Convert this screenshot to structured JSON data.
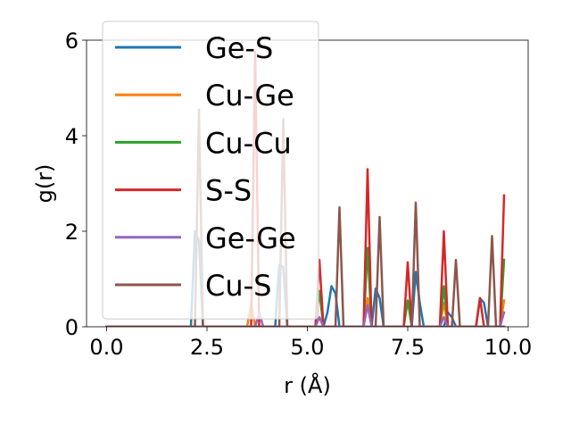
{
  "chart_data": {
    "type": "line",
    "title": "",
    "xlabel": "r (Å)",
    "ylabel": "g(r)",
    "xlim": [
      -0.5,
      10.5
    ],
    "ylim": [
      0,
      6
    ],
    "xticks": [
      0.0,
      2.5,
      5.0,
      7.5,
      10.0
    ],
    "xtick_labels": [
      "0.0",
      "2.5",
      "5.0",
      "7.5",
      "10.0"
    ],
    "yticks": [
      0,
      2,
      4,
      6
    ],
    "ytick_labels": [
      "0",
      "2",
      "4",
      "6"
    ],
    "grid": false,
    "legend_position": "top-left",
    "x": [
      0.0,
      0.1,
      0.2,
      0.3,
      0.4,
      0.5,
      0.6,
      0.7,
      0.8,
      0.9,
      1.0,
      1.1,
      1.2,
      1.3,
      1.4,
      1.5,
      1.6,
      1.7,
      1.8,
      1.9,
      2.0,
      2.1,
      2.2,
      2.3,
      2.4,
      2.5,
      2.6,
      2.7,
      2.8,
      2.9,
      3.0,
      3.1,
      3.2,
      3.3,
      3.4,
      3.5,
      3.6,
      3.7,
      3.8,
      3.9,
      4.0,
      4.1,
      4.2,
      4.3,
      4.4,
      4.5,
      4.6,
      4.7,
      4.8,
      4.9,
      5.0,
      5.1,
      5.2,
      5.3,
      5.4,
      5.5,
      5.6,
      5.7,
      5.8,
      5.9,
      6.0,
      6.1,
      6.2,
      6.3,
      6.4,
      6.5,
      6.6,
      6.7,
      6.8,
      6.9,
      7.0,
      7.1,
      7.2,
      7.3,
      7.4,
      7.5,
      7.6,
      7.7,
      7.8,
      7.9,
      8.0,
      8.1,
      8.2,
      8.3,
      8.4,
      8.5,
      8.6,
      8.7,
      8.8,
      8.9,
      9.0,
      9.1,
      9.2,
      9.3,
      9.4,
      9.5,
      9.6,
      9.7,
      9.8,
      9.9
    ],
    "series": [
      {
        "name": "Ge-S",
        "color": "#1f77b4",
        "values": [
          0,
          0,
          0,
          0,
          0,
          0,
          0,
          0,
          0,
          0,
          0,
          0,
          0,
          0,
          0,
          0,
          0,
          0,
          0,
          0,
          0,
          0,
          2.0,
          1.8,
          0,
          0,
          0,
          0,
          0,
          0,
          0,
          0,
          0,
          0,
          0,
          0,
          0,
          0,
          0,
          0,
          0,
          0,
          0,
          1.3,
          1.25,
          0,
          0,
          0,
          0,
          0,
          0,
          0,
          0,
          0,
          0,
          0.3,
          0.85,
          0.7,
          0,
          0,
          0,
          0,
          0,
          0,
          0,
          0,
          0,
          0.8,
          0.6,
          0,
          0,
          0,
          0,
          0,
          0,
          0,
          0,
          1.15,
          0.5,
          0,
          0,
          0,
          0,
          0,
          0,
          0.3,
          0.2,
          0,
          0,
          0,
          0,
          0,
          0,
          0.6,
          0.5,
          0,
          0,
          0,
          0,
          0
        ]
      },
      {
        "name": "Cu-Ge",
        "color": "#ff7f0e",
        "values": [
          0,
          0,
          0,
          0,
          0,
          0,
          0,
          0,
          0,
          0,
          0,
          0,
          0,
          0,
          0,
          0,
          0,
          0,
          0,
          0,
          0,
          0,
          0,
          0,
          0,
          0,
          0,
          0,
          0,
          0,
          0,
          0,
          0,
          0,
          0,
          0,
          0.5,
          0,
          0,
          0,
          0,
          0,
          0,
          0,
          0,
          0,
          0,
          0,
          0,
          0,
          0,
          0,
          0,
          0.2,
          0,
          0,
          0,
          0,
          0,
          0,
          0,
          0,
          0,
          0,
          0,
          0.6,
          0,
          0,
          0,
          0,
          0,
          0,
          0,
          0,
          0,
          0,
          0,
          0,
          0,
          0,
          0,
          0,
          0,
          0,
          0.5,
          0,
          0,
          0,
          0,
          0,
          0,
          0,
          0,
          0,
          0,
          0,
          0,
          0,
          0,
          0.55
        ]
      },
      {
        "name": "Cu-Cu",
        "color": "#2ca02c",
        "values": [
          0,
          0,
          0,
          0,
          0,
          0,
          0,
          0,
          0,
          0,
          0,
          0,
          0,
          0,
          0,
          0,
          0,
          0,
          0,
          0,
          0,
          0,
          0,
          0,
          0,
          0,
          0,
          0,
          0,
          0,
          0,
          0,
          0,
          0,
          0,
          0,
          0,
          0,
          0,
          0,
          0,
          0,
          0,
          0,
          0,
          0,
          0,
          0,
          0,
          0,
          0,
          0,
          0,
          0.75,
          0,
          0,
          0,
          0,
          0,
          0,
          0,
          0,
          0,
          0,
          0,
          1.65,
          0,
          0,
          0,
          0,
          0,
          0,
          0,
          0,
          0,
          0.55,
          0,
          0,
          0,
          0,
          0,
          0,
          0,
          0,
          0.85,
          0,
          0,
          0,
          0,
          0,
          0,
          0,
          0,
          0,
          0,
          0,
          0,
          0,
          0,
          1.4
        ]
      },
      {
        "name": "S-S",
        "color": "#d62728",
        "values": [
          0,
          0,
          0,
          0,
          0,
          0,
          0,
          0,
          0,
          0,
          0,
          0,
          0,
          0,
          0,
          0,
          0,
          0,
          0,
          0,
          0,
          0,
          0,
          0,
          0,
          0,
          0,
          0,
          0,
          0,
          0,
          0,
          0,
          0,
          0,
          0,
          0,
          5.75,
          0,
          0,
          0,
          0,
          0,
          0,
          0,
          0,
          0,
          0,
          0,
          0,
          0,
          0,
          0,
          1.4,
          0,
          0,
          0,
          0,
          0,
          0,
          0,
          0,
          0,
          0,
          0,
          3.3,
          0,
          0,
          0,
          0,
          0,
          0,
          0,
          0,
          0,
          1.35,
          0,
          0,
          0,
          0,
          0,
          0,
          0,
          0,
          2.0,
          0,
          0,
          0,
          0,
          0,
          0,
          0,
          0,
          0.6,
          0,
          0,
          0,
          0,
          0,
          2.75
        ]
      },
      {
        "name": "Ge-Ge",
        "color": "#9467bd",
        "values": [
          0,
          0,
          0,
          0,
          0,
          0,
          0,
          0,
          0,
          0,
          0,
          0,
          0,
          0,
          0,
          0,
          0,
          0,
          0,
          0,
          0,
          0,
          0,
          0,
          0,
          0,
          0,
          0,
          0,
          0,
          0,
          0,
          0,
          0,
          0,
          0,
          0,
          0,
          0.3,
          0,
          0,
          0,
          0,
          0,
          0,
          0,
          0,
          0,
          0,
          0,
          0,
          0,
          0,
          0.2,
          0,
          0,
          0,
          0,
          0,
          0,
          0,
          0,
          0,
          0,
          0,
          0.45,
          0,
          0,
          0,
          0,
          0,
          0,
          0,
          0,
          0,
          0,
          0,
          0,
          0,
          0,
          0,
          0,
          0,
          0,
          0.2,
          0,
          0,
          0,
          0,
          0,
          0,
          0,
          0,
          0,
          0,
          0,
          0,
          0,
          0,
          0.3
        ]
      },
      {
        "name": "Cu-S",
        "color": "#8c564b",
        "values": [
          0,
          0,
          0,
          0,
          0,
          0,
          0,
          0,
          0,
          0,
          0,
          0,
          0,
          0,
          0,
          0,
          0,
          0,
          0,
          0,
          0,
          0,
          0,
          4.55,
          0,
          0,
          0,
          0,
          0,
          0,
          0,
          0,
          0,
          0,
          0,
          0,
          0,
          0,
          0,
          0,
          0,
          0,
          0,
          0,
          4.35,
          0,
          0,
          0,
          0,
          0,
          0,
          0,
          0,
          0,
          0,
          0,
          0,
          0,
          2.5,
          0,
          0,
          0,
          0,
          0,
          0,
          0,
          0,
          0,
          2.3,
          0,
          0,
          0,
          0,
          0,
          0,
          0,
          0,
          2.6,
          0,
          0,
          0,
          0,
          0,
          0,
          0,
          0,
          0,
          1.4,
          0,
          0,
          0,
          0,
          0,
          0,
          0,
          0,
          1.9,
          0,
          0,
          0
        ]
      }
    ]
  }
}
